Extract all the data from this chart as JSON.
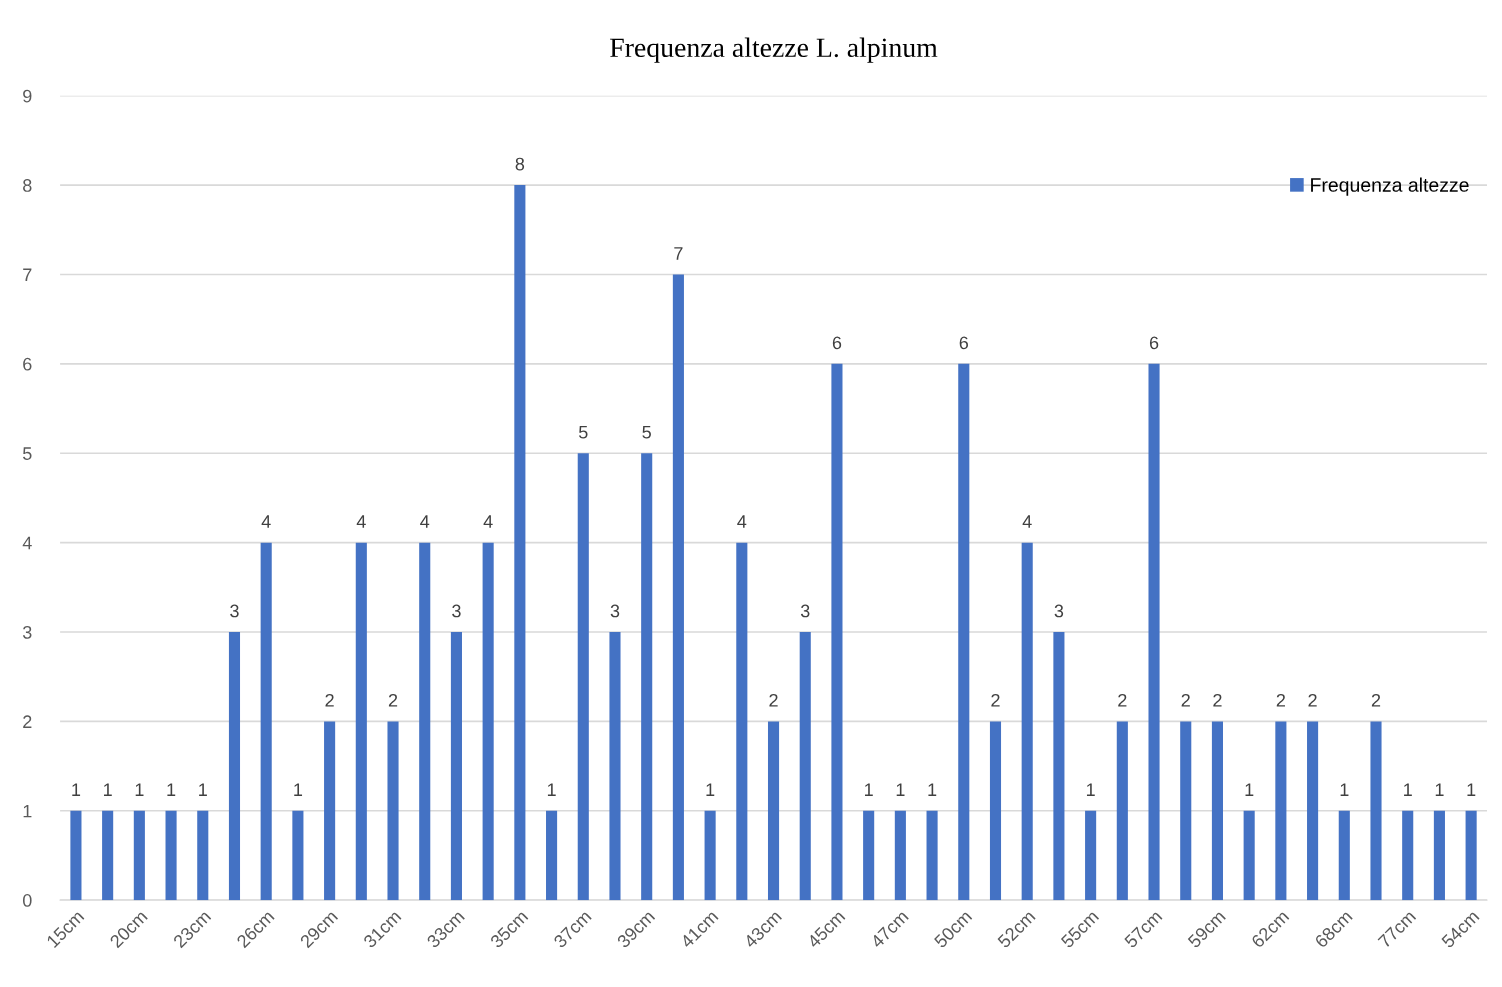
{
  "chart_data": {
    "type": "bar",
    "title": "Frequenza altezze L. alpinum",
    "categories": [
      "15cm",
      null,
      "20cm",
      null,
      "23cm",
      null,
      "26cm",
      null,
      "29cm",
      null,
      "31cm",
      null,
      "33cm",
      null,
      "35cm",
      null,
      "37cm",
      null,
      "39cm",
      null,
      "41cm",
      null,
      "43cm",
      null,
      "45cm",
      null,
      "47cm",
      null,
      "50cm",
      null,
      "52cm",
      null,
      "55cm",
      null,
      "57cm",
      null,
      "59cm",
      null,
      "62cm",
      null,
      "68cm",
      null,
      "77cm",
      null,
      "54cm"
    ],
    "series": [
      {
        "name": "Frequenza altezze",
        "color": "#4472c4",
        "values": [
          1,
          1,
          1,
          1,
          1,
          3,
          4,
          1,
          2,
          4,
          2,
          4,
          3,
          4,
          8,
          1,
          5,
          3,
          5,
          7,
          1,
          4,
          2,
          3,
          6,
          1,
          1,
          1,
          6,
          2,
          4,
          3,
          1,
          2,
          6,
          2,
          2,
          1,
          2,
          2,
          1,
          2,
          1,
          1,
          1
        ]
      }
    ],
    "ylim": [
      0,
      9
    ],
    "yticks": [
      0,
      1,
      2,
      3,
      4,
      5,
      6,
      7,
      8,
      9
    ],
    "grid": "y",
    "legend": "top right",
    "data_labels": true
  }
}
